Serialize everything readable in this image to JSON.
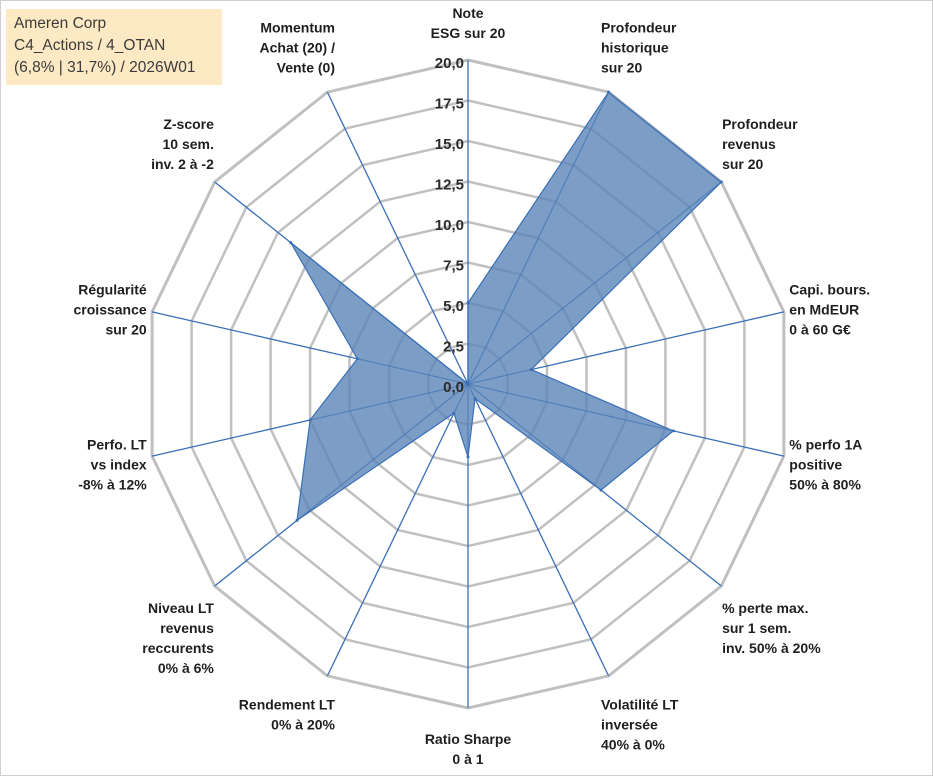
{
  "infobox": {
    "line1": "Ameren Corp",
    "line2": "C4_Actions / 4_OTAN",
    "line3": "(6,8% | 31,7%) / 2026W01"
  },
  "chart_data": {
    "type": "radar",
    "rmax": 20,
    "rmin": 0,
    "ticks": [
      "0,0",
      "2,5",
      "5,0",
      "7,5",
      "10,0",
      "12,5",
      "15,0",
      "17,5",
      "20,0"
    ],
    "categories": [
      [
        "Note",
        "ESG sur 20"
      ],
      [
        "Profondeur",
        "historique",
        "sur 20"
      ],
      [
        "Profondeur",
        "revenus",
        "sur 20"
      ],
      [
        "Capi. bours.",
        "en MdEUR",
        "0 à 60 G€"
      ],
      [
        "% perfo 1A",
        "positive",
        "50% à 80%"
      ],
      [
        "% perte max.",
        "sur 1 sem.",
        "inv. 50% à 20%"
      ],
      [
        "Volatilité LT",
        "inversée",
        "40% à 0%"
      ],
      [
        "Ratio Sharpe",
        "0 à 1"
      ],
      [
        "Rendement LT",
        "0% à 20%"
      ],
      [
        "Niveau LT",
        "revenus",
        "reccurents",
        "0% à 6%"
      ],
      [
        "Perfo. LT",
        "vs index",
        "-8% à 12%"
      ],
      [
        "Régularité",
        "croissance",
        "sur 20"
      ],
      [
        "Z-score",
        "10 sem.",
        "inv. 2 à -2"
      ],
      [
        "Momentum",
        "Achat (20) /",
        "Vente (0)"
      ]
    ],
    "values": [
      5.0,
      20.0,
      20.0,
      4.0,
      13.0,
      10.5,
      1.0,
      4.5,
      2.0,
      13.5,
      10.0,
      7.0,
      14.0,
      0.0
    ],
    "series_color": "#5b86b8",
    "series_fill_opacity": 0.8,
    "grid_color": "#c0c0c0",
    "axis_color": "#3a6fb7"
  }
}
